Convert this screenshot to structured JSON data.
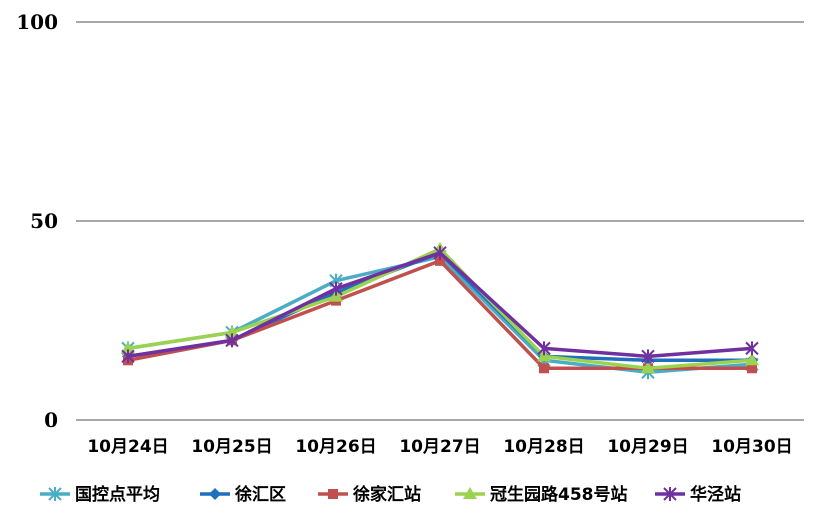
{
  "chart_data": {
    "type": "line",
    "categories": [
      "10月24日",
      "10月25日",
      "10月26日",
      "10月27日",
      "10月28日",
      "10月29日",
      "10月30日"
    ],
    "ylim": [
      0,
      100
    ],
    "yticks": [
      0,
      50,
      100
    ],
    "grid": true,
    "legend_position": "bottom",
    "series": [
      {
        "name": "国控点平均",
        "color": "#4bacc6",
        "marker": "star",
        "values": [
          18,
          22,
          35,
          41,
          15,
          12,
          14
        ]
      },
      {
        "name": "徐汇区",
        "color": "#1f6fbf",
        "marker": "diamond",
        "values": [
          16,
          20,
          32,
          42,
          16,
          15,
          15
        ]
      },
      {
        "name": "徐家汇站",
        "color": "#c0504d",
        "marker": "square",
        "values": [
          15,
          20,
          30,
          40,
          13,
          13,
          13
        ]
      },
      {
        "name": "冠生园路458号站",
        "color": "#9bd34f",
        "marker": "triangle",
        "values": [
          18,
          22,
          31,
          43,
          16,
          13,
          15
        ]
      },
      {
        "name": "华泾站",
        "color": "#7030a0",
        "marker": "star",
        "values": [
          16,
          20,
          33,
          42,
          18,
          16,
          18
        ]
      }
    ]
  }
}
